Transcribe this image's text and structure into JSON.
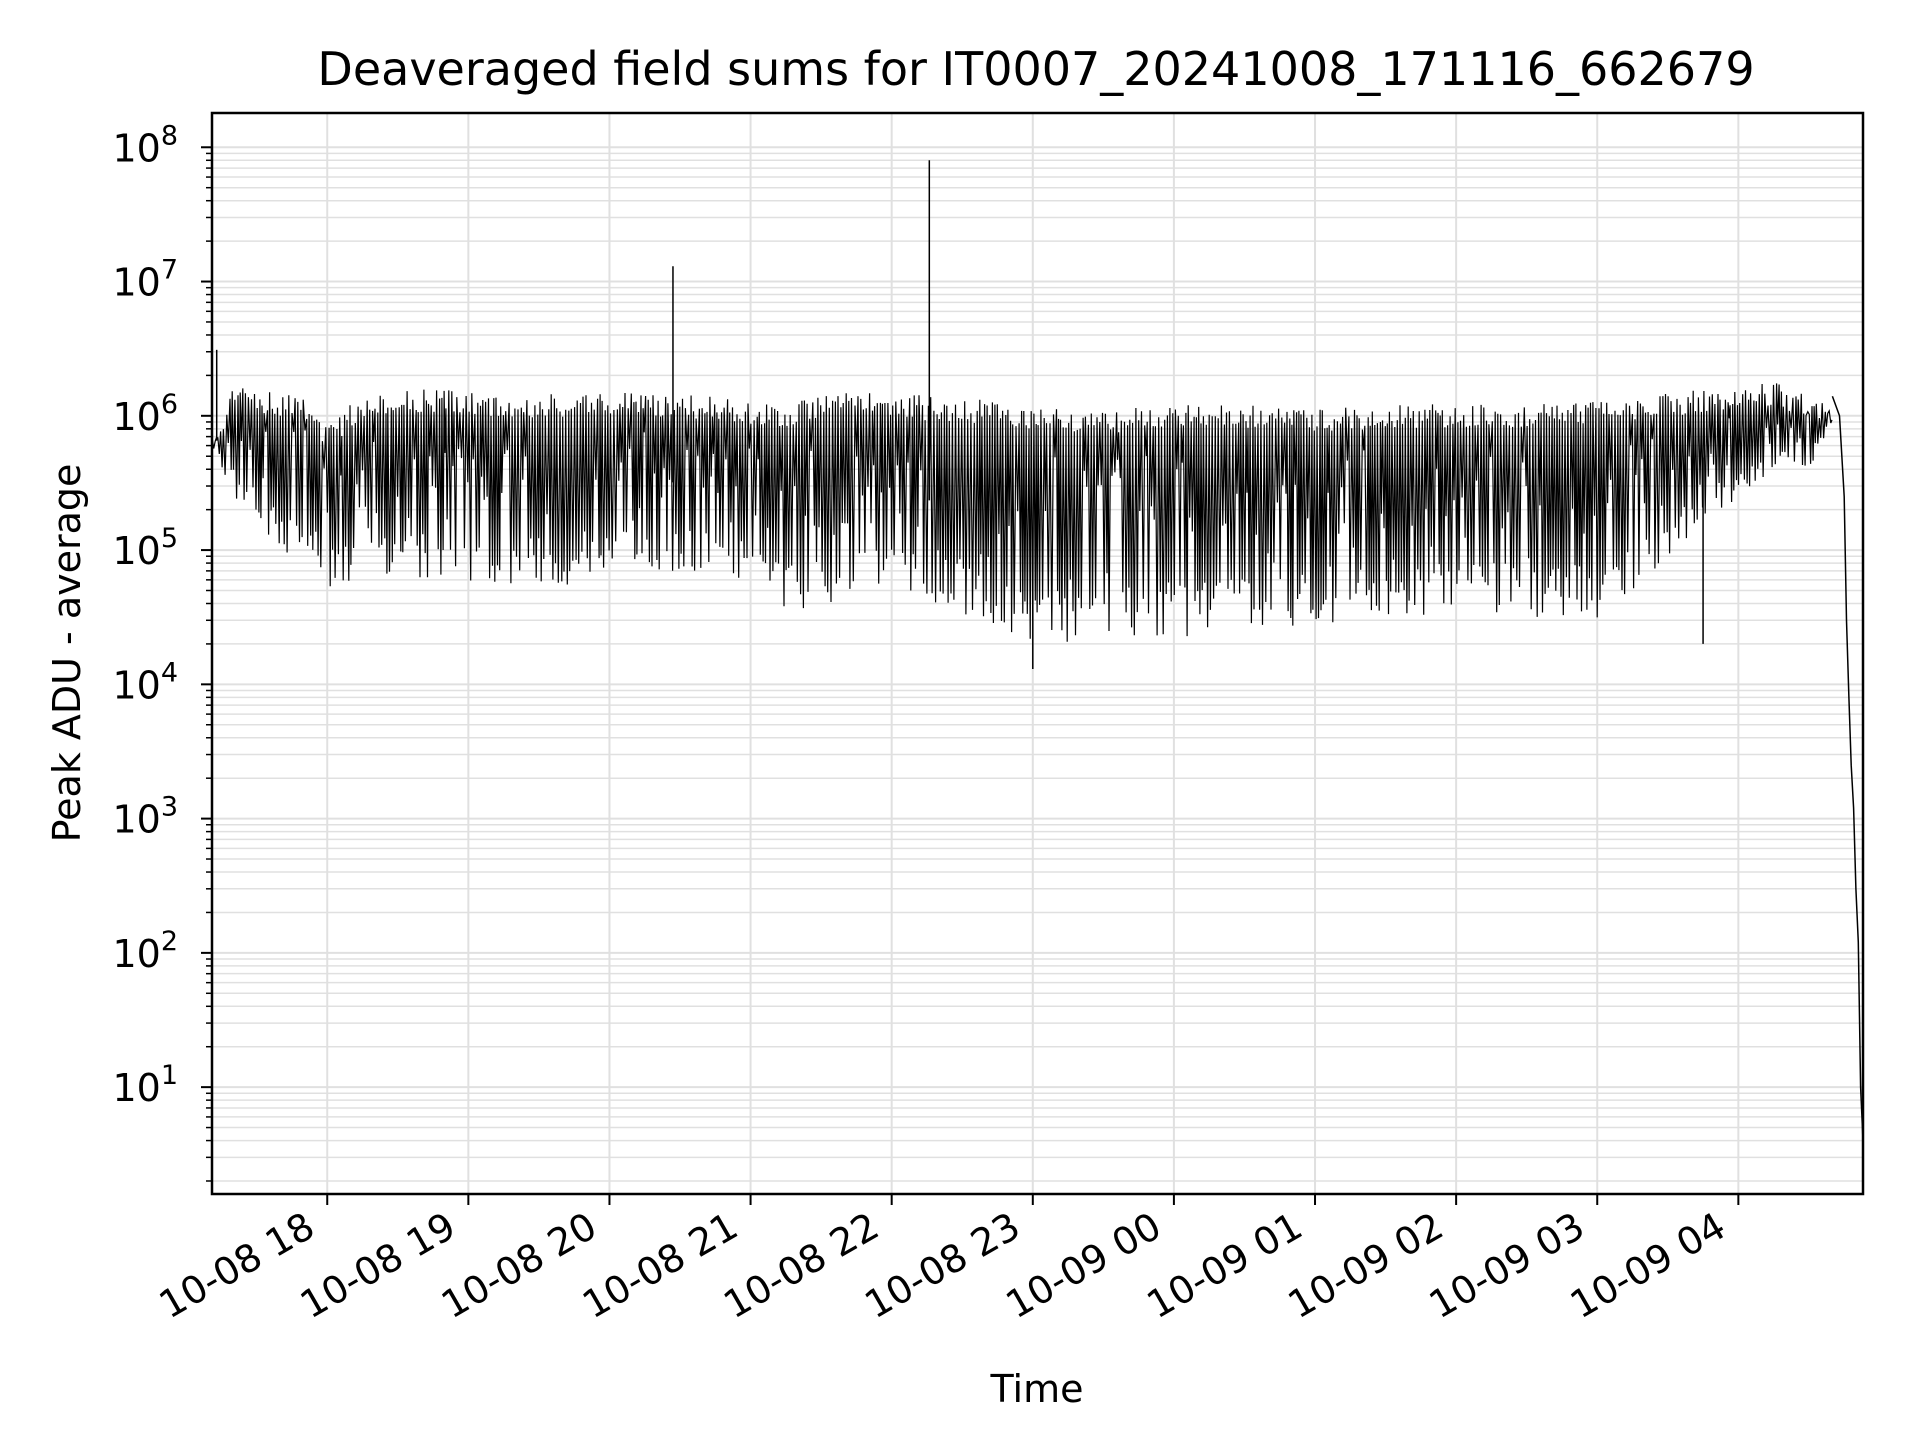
{
  "chart_data": {
    "type": "line",
    "title": "Deaveraged field sums for IT0007_20241008_171116_662679",
    "xlabel": "Time",
    "ylabel": "Peak ADU - average",
    "yscale": "log",
    "ylim": [
      1.6,
      180000000
    ],
    "xlim": [
      "2024-10-08 17:11",
      "2024-10-09 04:53"
    ],
    "grid": true,
    "legend": "none",
    "line_color": "#000000",
    "grid_color": "#e0e0e0",
    "x_tick_labels": [
      "10-08 18",
      "10-08 19",
      "10-08 20",
      "10-08 21",
      "10-08 22",
      "10-08 23",
      "10-09 00",
      "10-09 01",
      "10-09 02",
      "10-09 03",
      "10-09 04"
    ],
    "x_tick_times": [
      "2024-10-08 18:00",
      "2024-10-08 19:00",
      "2024-10-08 20:00",
      "2024-10-08 21:00",
      "2024-10-08 22:00",
      "2024-10-08 23:00",
      "2024-10-09 00:00",
      "2024-10-09 01:00",
      "2024-10-09 02:00",
      "2024-10-09 03:00",
      "2024-10-09 04:00"
    ],
    "y_tick_labels": [
      {
        "base": "10",
        "exp": "1",
        "value": 10
      },
      {
        "base": "10",
        "exp": "2",
        "value": 100
      },
      {
        "base": "10",
        "exp": "3",
        "value": 1000
      },
      {
        "base": "10",
        "exp": "4",
        "value": 10000
      },
      {
        "base": "10",
        "exp": "5",
        "value": 100000
      },
      {
        "base": "10",
        "exp": "6",
        "value": 1000000
      },
      {
        "base": "10",
        "exp": "7",
        "value": 10000000
      },
      {
        "base": "10",
        "exp": "8",
        "value": 100000000
      }
    ],
    "series": [
      {
        "envelope": [
          {
            "t": "2024-10-08 17:11",
            "high": 700000,
            "low": 600000
          },
          {
            "t": "2024-10-08 17:20",
            "high": 1800000,
            "low": 250000
          },
          {
            "t": "2024-10-08 17:35",
            "high": 1500000,
            "low": 130000
          },
          {
            "t": "2024-10-08 17:50",
            "high": 1500000,
            "low": 70000
          },
          {
            "t": "2024-10-08 18:00",
            "high": 800000,
            "low": 50000
          },
          {
            "t": "2024-10-08 18:15",
            "high": 1500000,
            "low": 60000
          },
          {
            "t": "2024-10-08 18:45",
            "high": 1600000,
            "low": 60000
          },
          {
            "t": "2024-10-08 19:15",
            "high": 1400000,
            "low": 55000
          },
          {
            "t": "2024-10-08 19:45",
            "high": 1500000,
            "low": 55000
          },
          {
            "t": "2024-10-08 20:15",
            "high": 1500000,
            "low": 70000
          },
          {
            "t": "2024-10-08 20:45",
            "high": 1400000,
            "low": 70000
          },
          {
            "t": "2024-10-08 21:10",
            "high": 1200000,
            "low": 40000
          },
          {
            "t": "2024-10-08 21:30",
            "high": 1400000,
            "low": 32000
          },
          {
            "t": "2024-10-08 21:50",
            "high": 1600000,
            "low": 60000
          },
          {
            "t": "2024-10-08 22:15",
            "high": 1400000,
            "low": 40000
          },
          {
            "t": "2024-10-08 22:45",
            "high": 1300000,
            "low": 25000
          },
          {
            "t": "2024-10-08 23:00",
            "high": 1200000,
            "low": 18000
          },
          {
            "t": "2024-10-08 23:30",
            "high": 1100000,
            "low": 20000
          },
          {
            "t": "2024-10-09 00:00",
            "high": 1200000,
            "low": 22000
          },
          {
            "t": "2024-10-09 00:30",
            "high": 1200000,
            "low": 25000
          },
          {
            "t": "2024-10-09 01:00",
            "high": 1150000,
            "low": 28000
          },
          {
            "t": "2024-10-09 01:30",
            "high": 1200000,
            "low": 30000
          },
          {
            "t": "2024-10-09 02:00",
            "high": 1250000,
            "low": 32000
          },
          {
            "t": "2024-10-09 02:30",
            "high": 1200000,
            "low": 32000
          },
          {
            "t": "2024-10-09 03:00",
            "high": 1300000,
            "low": 30000
          },
          {
            "t": "2024-10-09 03:20",
            "high": 1400000,
            "low": 60000
          },
          {
            "t": "2024-10-09 03:45",
            "high": 1600000,
            "low": 150000
          },
          {
            "t": "2024-10-09 04:15",
            "high": 1800000,
            "low": 400000
          },
          {
            "t": "2024-10-09 04:30",
            "high": 1400000,
            "low": 400000
          },
          {
            "t": "2024-10-09 04:40",
            "high": 1200000,
            "low": 900000
          }
        ],
        "trace": [
          {
            "t": "2024-10-08 17:11",
            "y": 700000
          },
          {
            "t": "2024-10-08 17:13",
            "y": 3100000
          },
          {
            "t": "2024-10-08 17:15",
            "y": 900000
          },
          {
            "t": "2024-10-08 20:27",
            "y": 13000000
          },
          {
            "t": "2024-10-08 22:16",
            "y": 80000000
          },
          {
            "t": "2024-10-08 23:00",
            "y": 13000
          },
          {
            "t": "2024-10-09 03:45",
            "y": 20000
          },
          {
            "t": "2024-10-09 04:40",
            "y": 1400000
          },
          {
            "t": "2024-10-09 04:43",
            "y": 1000000
          },
          {
            "t": "2024-10-09 04:45",
            "y": 250000
          },
          {
            "t": "2024-10-09 04:46",
            "y": 30000
          },
          {
            "t": "2024-10-09 04:47",
            "y": 8000
          },
          {
            "t": "2024-10-09 04:48",
            "y": 2500
          },
          {
            "t": "2024-10-09 04:49",
            "y": 1200
          },
          {
            "t": "2024-10-09 04:50",
            "y": 300
          },
          {
            "t": "2024-10-09 04:51",
            "y": 120
          },
          {
            "t": "2024-10-09 04:52",
            "y": 10
          },
          {
            "t": "2024-10-09 04:53",
            "y": 4
          }
        ]
      }
    ]
  }
}
